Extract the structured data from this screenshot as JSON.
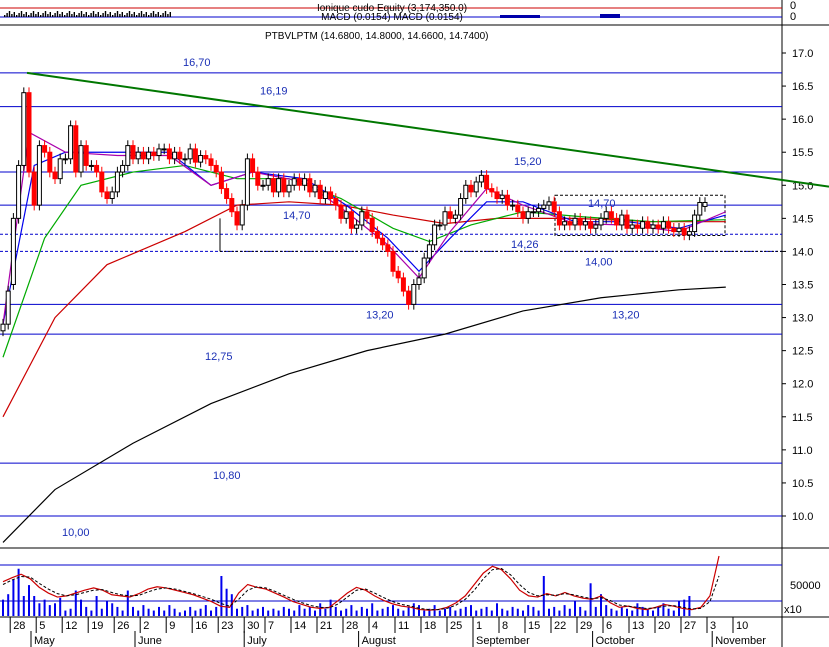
{
  "chart_data": {
    "type": "candlestick",
    "top_strip": {
      "labels": [
        "Ionique cudo Equity (3,174,350.0)",
        "MACD (0.0154) MACD (0.0154)"
      ],
      "y_ticks": [
        "0",
        "0"
      ]
    },
    "title": "PTBVLPTM (14.6800, 14.8000, 14.6600, 14.7400)",
    "y_axis": {
      "ticks": [
        "17.0",
        "16.5",
        "16.0",
        "15.5",
        "15.0",
        "14.5",
        "14.0",
        "13.5",
        "13.0",
        "12.5",
        "12.0",
        "11.5",
        "11.0",
        "10.5",
        "10.0"
      ],
      "ylim": [
        9.6,
        17.3
      ]
    },
    "levels": [
      {
        "label": "16,70",
        "value": 16.7
      },
      {
        "label": "16,19",
        "value": 16.19
      },
      {
        "label": "15,20",
        "value": 15.2
      },
      {
        "label": "14,70",
        "value": 14.7
      },
      {
        "label": "14,26",
        "value": 14.26
      },
      {
        "label": "14,00",
        "value": 14.0
      },
      {
        "label": "13,20",
        "value": 13.2
      },
      {
        "label": "12,75",
        "value": 12.75
      },
      {
        "label": "10,80",
        "value": 10.8
      },
      {
        "label": "10,00",
        "value": 10.0
      }
    ],
    "level_labels_extra": [
      {
        "label": "13,20",
        "value": 13.2
      },
      {
        "label": "14,70",
        "value": 14.7
      }
    ],
    "trendline": {
      "from": [
        0,
        16.7
      ],
      "to": [
        145,
        14.98
      ]
    },
    "candles": {
      "open": [
        12.8,
        12.9,
        13.5,
        14.5,
        15.3,
        16.4,
        15.2,
        14.7,
        15.6,
        15.5,
        15.2,
        15.1,
        15.4,
        15.4,
        15.9,
        15.2,
        15.6,
        15.3,
        15.3,
        15.2,
        14.9,
        14.8,
        14.9,
        15.2,
        15.3,
        15.6,
        15.4,
        15.5,
        15.4,
        15.5,
        15.45,
        15.55,
        15.55,
        15.4,
        15.5,
        15.4,
        15.4,
        15.55,
        15.35,
        15.45,
        15.4,
        15.3,
        15.2,
        14.95,
        14.8,
        14.6,
        14.4,
        14.7,
        15.4,
        15.2,
        15.0,
        15.0,
        15.1,
        14.9,
        15.1,
        14.9,
        15.0,
        15.1,
        15.0,
        15.1,
        14.9,
        15.0,
        14.8,
        14.9,
        14.8,
        14.7,
        14.5,
        14.6,
        14.35,
        14.4,
        14.6,
        14.5,
        14.3,
        14.2,
        14.1,
        14.0,
        13.7,
        13.6,
        13.4,
        13.2,
        13.5,
        13.6,
        13.9,
        14.1,
        14.4,
        14.4,
        14.6,
        14.5,
        14.55,
        14.8,
        15.0,
        14.9,
        15.05,
        15.15,
        14.95,
        14.9,
        14.8,
        14.85,
        14.7,
        14.7,
        14.6,
        14.5,
        14.6,
        14.6,
        14.65,
        14.7,
        14.75,
        14.6,
        14.4,
        14.45,
        14.4,
        14.5,
        14.4,
        14.45,
        14.35,
        14.4,
        14.5,
        14.6,
        14.5,
        14.4,
        14.55,
        14.35,
        14.4,
        14.35,
        14.45,
        14.35,
        14.4,
        14.35,
        14.45,
        14.35,
        14.3,
        14.35,
        14.25,
        14.3,
        14.55,
        14.68
      ],
      "close": [
        12.9,
        13.4,
        14.5,
        15.3,
        16.4,
        15.2,
        14.7,
        15.6,
        15.5,
        15.2,
        15.1,
        15.4,
        15.4,
        15.9,
        15.2,
        15.6,
        15.3,
        15.3,
        15.2,
        14.9,
        14.8,
        14.9,
        15.2,
        15.3,
        15.6,
        15.4,
        15.5,
        15.4,
        15.5,
        15.45,
        15.55,
        15.55,
        15.4,
        15.5,
        15.4,
        15.4,
        15.55,
        15.35,
        15.45,
        15.4,
        15.3,
        15.2,
        14.95,
        14.8,
        14.6,
        14.4,
        14.7,
        15.4,
        15.2,
        15.0,
        15.0,
        15.1,
        14.9,
        15.1,
        14.9,
        15.0,
        15.1,
        15.0,
        15.1,
        14.9,
        15.0,
        14.8,
        14.9,
        14.8,
        14.7,
        14.5,
        14.6,
        14.35,
        14.4,
        14.6,
        14.5,
        14.3,
        14.2,
        14.1,
        14.0,
        13.7,
        13.6,
        13.4,
        13.2,
        13.5,
        13.6,
        13.9,
        14.1,
        14.4,
        14.4,
        14.6,
        14.5,
        14.55,
        14.8,
        15.0,
        14.9,
        15.05,
        15.15,
        14.95,
        14.9,
        14.8,
        14.85,
        14.7,
        14.7,
        14.6,
        14.5,
        14.6,
        14.6,
        14.65,
        14.7,
        14.75,
        14.6,
        14.4,
        14.45,
        14.4,
        14.5,
        14.4,
        14.45,
        14.35,
        14.4,
        14.5,
        14.6,
        14.5,
        14.4,
        14.55,
        14.35,
        14.4,
        14.35,
        14.45,
        14.35,
        14.4,
        14.35,
        14.45,
        14.35,
        14.3,
        14.35,
        14.25,
        14.3,
        14.55,
        14.74,
        14.74
      ]
    },
    "moving_averages": [
      {
        "color": "#000000",
        "values": [
          {
            "x": 0,
            "y": 9.6
          },
          {
            "x": 10,
            "y": 10.4
          },
          {
            "x": 25,
            "y": 11.1
          },
          {
            "x": 40,
            "y": 11.7
          },
          {
            "x": 55,
            "y": 12.15
          },
          {
            "x": 70,
            "y": 12.5
          },
          {
            "x": 85,
            "y": 12.75
          },
          {
            "x": 100,
            "y": 13.1
          },
          {
            "x": 115,
            "y": 13.3
          },
          {
            "x": 130,
            "y": 13.42
          },
          {
            "x": 139,
            "y": 13.46
          }
        ]
      },
      {
        "color": "#cc0000",
        "values": [
          {
            "x": 0,
            "y": 11.5
          },
          {
            "x": 10,
            "y": 13.0
          },
          {
            "x": 20,
            "y": 13.8
          },
          {
            "x": 35,
            "y": 14.3
          },
          {
            "x": 45,
            "y": 14.7
          },
          {
            "x": 55,
            "y": 14.75
          },
          {
            "x": 65,
            "y": 14.7
          },
          {
            "x": 75,
            "y": 14.55
          },
          {
            "x": 85,
            "y": 14.42
          },
          {
            "x": 95,
            "y": 14.5
          },
          {
            "x": 110,
            "y": 14.5
          },
          {
            "x": 125,
            "y": 14.45
          },
          {
            "x": 139,
            "y": 14.45
          }
        ]
      },
      {
        "color": "#00aa00",
        "values": [
          {
            "x": 0,
            "y": 12.4
          },
          {
            "x": 8,
            "y": 14.2
          },
          {
            "x": 15,
            "y": 15.0
          },
          {
            "x": 25,
            "y": 15.2
          },
          {
            "x": 35,
            "y": 15.3
          },
          {
            "x": 45,
            "y": 15.1
          },
          {
            "x": 55,
            "y": 15.1
          },
          {
            "x": 65,
            "y": 14.8
          },
          {
            "x": 75,
            "y": 14.35
          },
          {
            "x": 82,
            "y": 14.15
          },
          {
            "x": 90,
            "y": 14.4
          },
          {
            "x": 100,
            "y": 14.6
          },
          {
            "x": 112,
            "y": 14.52
          },
          {
            "x": 125,
            "y": 14.45
          },
          {
            "x": 139,
            "y": 14.48
          }
        ]
      },
      {
        "color": "#0000ee",
        "values": [
          {
            "x": 0,
            "y": 12.9
          },
          {
            "x": 6,
            "y": 15.3
          },
          {
            "x": 12,
            "y": 15.5
          },
          {
            "x": 22,
            "y": 15.5
          },
          {
            "x": 32,
            "y": 15.5
          },
          {
            "x": 40,
            "y": 15.0
          },
          {
            "x": 48,
            "y": 15.2
          },
          {
            "x": 58,
            "y": 15.1
          },
          {
            "x": 66,
            "y": 14.7
          },
          {
            "x": 74,
            "y": 14.2
          },
          {
            "x": 80,
            "y": 13.7
          },
          {
            "x": 86,
            "y": 14.2
          },
          {
            "x": 93,
            "y": 14.75
          },
          {
            "x": 100,
            "y": 14.75
          },
          {
            "x": 110,
            "y": 14.45
          },
          {
            "x": 120,
            "y": 14.45
          },
          {
            "x": 130,
            "y": 14.35
          },
          {
            "x": 139,
            "y": 14.55
          }
        ]
      },
      {
        "color": "#aa00aa",
        "values": [
          {
            "x": 0,
            "y": 12.9
          },
          {
            "x": 5,
            "y": 15.8
          },
          {
            "x": 12,
            "y": 15.5
          },
          {
            "x": 22,
            "y": 15.45
          },
          {
            "x": 32,
            "y": 15.45
          },
          {
            "x": 40,
            "y": 15.0
          },
          {
            "x": 48,
            "y": 15.2
          },
          {
            "x": 58,
            "y": 15.05
          },
          {
            "x": 66,
            "y": 14.6
          },
          {
            "x": 74,
            "y": 14.1
          },
          {
            "x": 80,
            "y": 13.6
          },
          {
            "x": 86,
            "y": 14.3
          },
          {
            "x": 93,
            "y": 14.95
          },
          {
            "x": 100,
            "y": 14.7
          },
          {
            "x": 110,
            "y": 14.42
          },
          {
            "x": 120,
            "y": 14.4
          },
          {
            "x": 130,
            "y": 14.3
          },
          {
            "x": 139,
            "y": 14.6
          }
        ]
      }
    ],
    "x_axis": {
      "day_ticks": [
        {
          "label": "28",
          "x": 1
        },
        {
          "label": "5",
          "x": 6
        },
        {
          "label": "12",
          "x": 11
        },
        {
          "label": "19",
          "x": 16
        },
        {
          "label": "26",
          "x": 21
        },
        {
          "label": "2",
          "x": 26
        },
        {
          "label": "9",
          "x": 31
        },
        {
          "label": "16",
          "x": 36
        },
        {
          "label": "23",
          "x": 41
        },
        {
          "label": "30",
          "x": 46
        },
        {
          "label": "7",
          "x": 50
        },
        {
          "label": "14",
          "x": 55
        },
        {
          "label": "21",
          "x": 60
        },
        {
          "label": "28",
          "x": 65
        },
        {
          "label": "4",
          "x": 70
        },
        {
          "label": "11",
          "x": 75
        },
        {
          "label": "18",
          "x": 80
        },
        {
          "label": "25",
          "x": 85
        },
        {
          "label": "1",
          "x": 90
        },
        {
          "label": "8",
          "x": 95
        },
        {
          "label": "15",
          "x": 100
        },
        {
          "label": "22",
          "x": 105
        },
        {
          "label": "29",
          "x": 110
        },
        {
          "label": "6",
          "x": 115
        },
        {
          "label": "13",
          "x": 120
        },
        {
          "label": "20",
          "x": 125
        },
        {
          "label": "27",
          "x": 130
        },
        {
          "label": "3",
          "x": 135
        },
        {
          "label": "10",
          "x": 140
        }
      ],
      "month_ticks": [
        {
          "label": "May",
          "x": 5
        },
        {
          "label": "June",
          "x": 25
        },
        {
          "label": "July",
          "x": 46
        },
        {
          "label": "August",
          "x": 68
        },
        {
          "label": "September",
          "x": 90
        },
        {
          "label": "October",
          "x": 113
        },
        {
          "label": "November",
          "x": 136
        }
      ]
    },
    "volume": {
      "scale_label": "x10",
      "y_ticks": [
        "50000"
      ],
      "values": [
        18000,
        24000,
        40000,
        52000,
        22000,
        34000,
        22000,
        14000,
        18000,
        12000,
        14000,
        20000,
        6000,
        8000,
        28000,
        18000,
        10000,
        6000,
        22000,
        8000,
        16000,
        14000,
        10000,
        6000,
        28000,
        10000,
        6000,
        12000,
        8000,
        6000,
        10000,
        6000,
        12000,
        8000,
        4000,
        6000,
        10000,
        6000,
        8000,
        12000,
        6000,
        10000,
        44000,
        30000,
        24000,
        8000,
        10000,
        12000,
        6000,
        8000,
        10000,
        6000,
        8000,
        6000,
        10000,
        8000,
        6000,
        12000,
        8000,
        10000,
        6000,
        14000,
        8000,
        18000,
        10000,
        6000,
        8000,
        12000,
        6000,
        10000,
        8000,
        14000,
        6000,
        8000,
        10000,
        12000,
        8000,
        6000,
        10000,
        14000,
        12000,
        6000,
        8000,
        12000,
        6000,
        8000,
        10000,
        6000,
        8000,
        10000,
        12000,
        6000,
        8000,
        10000,
        6000,
        14000,
        8000,
        6000,
        10000,
        8000,
        6000,
        12000,
        10000,
        6000,
        44000,
        8000,
        10000,
        6000,
        12000,
        8000,
        16000,
        10000,
        6000,
        36000,
        10000,
        24000,
        12000,
        8000,
        6000,
        10000,
        8000,
        6000,
        14000,
        10000,
        8000,
        6000,
        10000,
        14000,
        8000,
        6000,
        16000,
        18000,
        22000
      ]
    },
    "oscillator": {
      "line": [
        0.55,
        0.62,
        0.68,
        0.6,
        0.45,
        0.35,
        0.28,
        0.3,
        0.35,
        0.4,
        0.44,
        0.4,
        0.32,
        0.3,
        0.28,
        0.34,
        0.42,
        0.46,
        0.44,
        0.4,
        0.36,
        0.32,
        0.26,
        0.2,
        0.12,
        0.1,
        0.35,
        0.5,
        0.45,
        0.42,
        0.35,
        0.28,
        0.2,
        0.15,
        0.1,
        0.08,
        0.1,
        0.22,
        0.35,
        0.45,
        0.4,
        0.3,
        0.22,
        0.16,
        0.12,
        0.1,
        0.06,
        0.05,
        0.06,
        0.1,
        0.18,
        0.3,
        0.5,
        0.7,
        0.82,
        0.76,
        0.6,
        0.4,
        0.3,
        0.28,
        0.34,
        0.3,
        0.36,
        0.3,
        0.26,
        0.24,
        0.3,
        0.18,
        0.1,
        0.12,
        0.08,
        0.06,
        0.1,
        0.15,
        0.12,
        0.08,
        0.06,
        0.1,
        0.3,
        1.0
      ],
      "signal": [
        0.5,
        0.58,
        0.64,
        0.63,
        0.52,
        0.42,
        0.34,
        0.3,
        0.32,
        0.36,
        0.4,
        0.41,
        0.36,
        0.32,
        0.3,
        0.31,
        0.37,
        0.42,
        0.44,
        0.42,
        0.38,
        0.34,
        0.29,
        0.24,
        0.17,
        0.12,
        0.24,
        0.4,
        0.46,
        0.44,
        0.38,
        0.31,
        0.24,
        0.18,
        0.13,
        0.1,
        0.09,
        0.16,
        0.28,
        0.4,
        0.42,
        0.35,
        0.27,
        0.2,
        0.15,
        0.12,
        0.08,
        0.06,
        0.06,
        0.08,
        0.14,
        0.24,
        0.4,
        0.6,
        0.76,
        0.78,
        0.67,
        0.5,
        0.36,
        0.3,
        0.32,
        0.31,
        0.34,
        0.32,
        0.28,
        0.25,
        0.27,
        0.22,
        0.14,
        0.12,
        0.1,
        0.08,
        0.09,
        0.12,
        0.13,
        0.1,
        0.07,
        0.08,
        0.2,
        0.65
      ]
    },
    "colors": {
      "up": "#000000",
      "down": "#ff0000",
      "level_line": "#0000cc",
      "trendline": "#007700",
      "grid": "#000000",
      "level_text": "#1a2fb5",
      "osc_line": "#cc0000",
      "osc_signal": "#000000",
      "volume": "#0000ee"
    }
  }
}
